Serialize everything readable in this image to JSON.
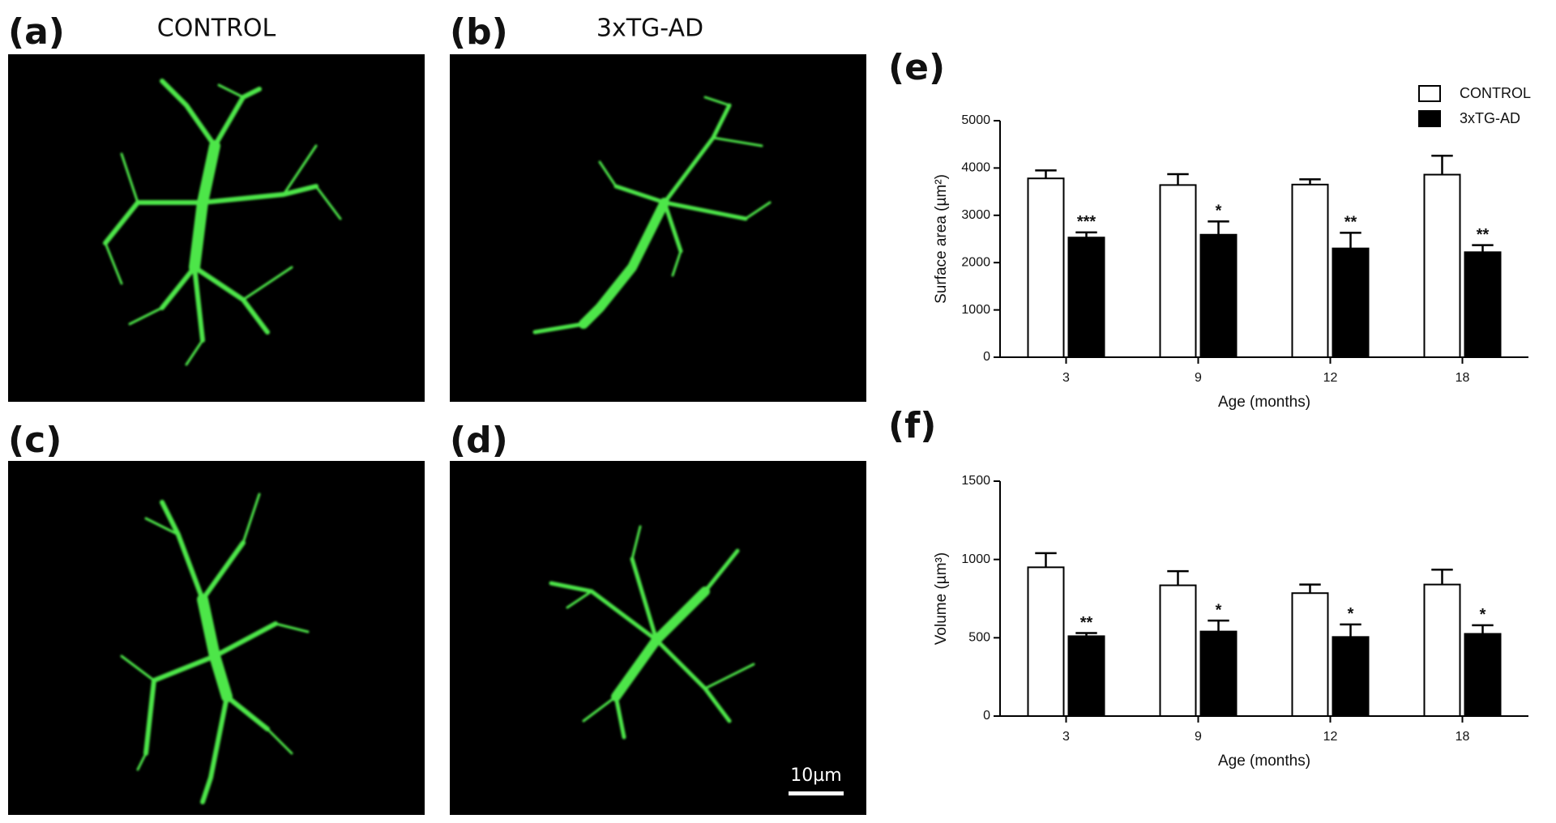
{
  "panels": [
    {
      "label": "(a)",
      "title": "CONTROL"
    },
    {
      "label": "(b)",
      "title": "3xTG-AD"
    },
    {
      "label": "(c)"
    },
    {
      "label": "(d)",
      "scale_bar": "10µm"
    }
  ],
  "chart_data": [
    {
      "type": "bar",
      "label": "(e)",
      "x_label": "Age (months)",
      "y_label": "Surface area (µm²)",
      "categories": [
        "3",
        "9",
        "12",
        "18"
      ],
      "series": [
        {
          "name": "CONTROL",
          "color": "#ffffff",
          "values": [
            3780,
            3640,
            3650,
            3860
          ],
          "errors": [
            170,
            230,
            110,
            400
          ]
        },
        {
          "name": "3xTG-AD",
          "color": "#000000",
          "values": [
            2530,
            2590,
            2300,
            2220
          ],
          "errors": [
            110,
            280,
            330,
            150
          ],
          "significance": [
            "***",
            "*",
            "**",
            "**"
          ]
        }
      ],
      "ylim": [
        0,
        5000
      ],
      "yticks": [
        0,
        1000,
        2000,
        3000,
        4000,
        5000
      ],
      "legend": "top-right"
    },
    {
      "type": "bar",
      "label": "(f)",
      "x_label": "Age (months)",
      "y_label": "Volume (µm³)",
      "categories": [
        "3",
        "9",
        "12",
        "18"
      ],
      "series": [
        {
          "name": "CONTROL",
          "color": "#ffffff",
          "values": [
            950,
            835,
            785,
            840
          ],
          "errors": [
            90,
            90,
            55,
            95
          ]
        },
        {
          "name": "3xTG-AD",
          "color": "#000000",
          "values": [
            510,
            540,
            505,
            525
          ],
          "errors": [
            20,
            70,
            80,
            55
          ],
          "significance": [
            "**",
            "*",
            "*",
            "*"
          ]
        }
      ],
      "ylim": [
        0,
        1500
      ],
      "yticks": [
        0,
        500,
        1000,
        1500
      ]
    }
  ]
}
